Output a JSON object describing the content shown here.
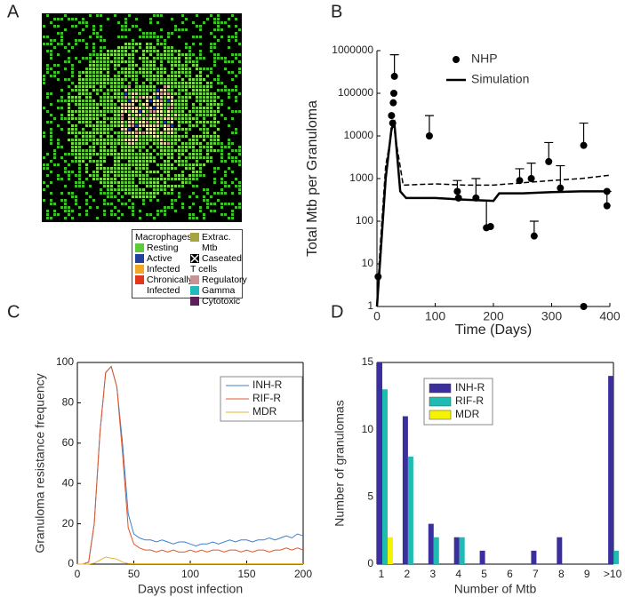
{
  "panel_labels": [
    "A",
    "B",
    "C",
    "D"
  ],
  "panel_a": {
    "legend": {
      "macrophages_title": "Macrophages",
      "macrophages": [
        {
          "label": "Resting",
          "color": "#5fc93c"
        },
        {
          "label": "Active",
          "color": "#23409c"
        },
        {
          "label": "Infected",
          "color": "#f4a722"
        },
        {
          "label": "Chronically Infected",
          "color": "#e2361f"
        }
      ],
      "other": [
        {
          "label": "Extrac. Mtb",
          "color": "#a6a43e"
        },
        {
          "label": "Caseated"
        }
      ],
      "tcells_title": "T cells",
      "tcells": [
        {
          "label": "Regulatory",
          "color": "#c79396"
        },
        {
          "label": "Gamma",
          "color": "#22b9be"
        },
        {
          "label": "Cytotoxic",
          "color": "#5e1e5a"
        }
      ]
    }
  },
  "chart_data": [
    {
      "type": "scatter",
      "y_label": "Total Mtb per Granuloma",
      "x_label": "Time (Days)",
      "log_scale_y": true,
      "xlim": [
        0,
        400
      ],
      "xticks": [
        0,
        100,
        200,
        300,
        400
      ],
      "ylim": [
        1,
        1000000
      ],
      "yticks": [
        1,
        10,
        100,
        1000,
        10000,
        100000,
        1000000
      ],
      "series": [
        {
          "name": "NHP",
          "kind": "points",
          "color": "#000000",
          "x": [
            2,
            25,
            27,
            28,
            29,
            30,
            90,
            138,
            140,
            170,
            188,
            195,
            245,
            265,
            270,
            295,
            315,
            355,
            355,
            395,
            395
          ],
          "values": [
            5,
            30000,
            20000,
            60000,
            100000,
            250000,
            10000,
            500,
            350,
            350,
            70,
            75,
            900,
            1000,
            45,
            2500,
            600,
            1,
            6000,
            230,
            500
          ],
          "error_upper": [
            null,
            null,
            null,
            null,
            null,
            800000,
            30000,
            900,
            null,
            1000,
            300,
            null,
            1700,
            2300,
            100,
            7000,
            2000,
            null,
            20000,
            500,
            null
          ]
        },
        {
          "name": "Simulation",
          "kind": "line",
          "style": "solid",
          "color": "#000000",
          "x": [
            0,
            5,
            15,
            25,
            30,
            40,
            50,
            100,
            150,
            200,
            210,
            250,
            300,
            350,
            400
          ],
          "values": [
            1,
            10,
            1000,
            15000,
            20000,
            500,
            350,
            350,
            320,
            300,
            450,
            450,
            480,
            500,
            500
          ]
        },
        {
          "kind": "line",
          "style": "dashed",
          "color": "#000000",
          "x": [
            0,
            5,
            15,
            28,
            35,
            45,
            100,
            150,
            200,
            250,
            300,
            350,
            400
          ],
          "values": [
            1,
            20,
            2000,
            20000,
            5000,
            700,
            750,
            700,
            700,
            800,
            900,
            1000,
            1200
          ]
        }
      ]
    },
    {
      "type": "line",
      "y_label": "Granuloma resistance frequency",
      "x_label": "Days post infection",
      "xlim": [
        0,
        200
      ],
      "xticks": [
        0,
        50,
        100,
        150,
        200
      ],
      "ylim": [
        0,
        100
      ],
      "yticks": [
        0,
        20,
        40,
        60,
        80,
        100
      ],
      "x": [
        0,
        5,
        10,
        15,
        20,
        25,
        30,
        35,
        40,
        45,
        50,
        55,
        60,
        65,
        70,
        75,
        80,
        85,
        90,
        95,
        100,
        105,
        110,
        115,
        120,
        125,
        130,
        135,
        140,
        145,
        150,
        155,
        160,
        165,
        170,
        175,
        180,
        185,
        190,
        195,
        200
      ],
      "series": [
        {
          "name": "INH-R",
          "color": "#3c80cf",
          "values": [
            0,
            0,
            1,
            20,
            65,
            95,
            98,
            88,
            60,
            25,
            15,
            13,
            12,
            12,
            11,
            12,
            11,
            10,
            11,
            11,
            10,
            9,
            10,
            10,
            11,
            10,
            11,
            12,
            11,
            12,
            12,
            11,
            12,
            12,
            13,
            12,
            13,
            14,
            13,
            15,
            14
          ]
        },
        {
          "name": "RIF-R",
          "color": "#e0582c",
          "values": [
            0,
            0,
            1,
            20,
            65,
            95,
            98,
            88,
            55,
            18,
            10,
            8,
            7,
            7,
            6,
            7,
            6,
            7,
            6,
            6,
            7,
            6,
            7,
            6,
            7,
            7,
            6,
            7,
            7,
            6,
            7,
            6,
            7,
            7,
            6,
            7,
            7,
            8,
            7,
            8,
            7
          ]
        },
        {
          "name": "MDR",
          "color": "#e8b730",
          "values": [
            0,
            0,
            0,
            0.5,
            2,
            3.5,
            3,
            2.5,
            1,
            0.3,
            0.2,
            0.2,
            0.2,
            0.2,
            0.2,
            0.2,
            0.2,
            0.2,
            0.2,
            0.2,
            0.2,
            0.2,
            0.2,
            0.2,
            0.2,
            0.2,
            0.2,
            0.2,
            0.2,
            0.2,
            0.2,
            0.2,
            0.2,
            0.2,
            0.2,
            0.2,
            0.2,
            0.2,
            0.2,
            0.2,
            0.2
          ]
        }
      ]
    },
    {
      "type": "bar",
      "y_label": "Number of granulomas",
      "x_label": "Number of Mtb",
      "categories": [
        "1",
        "2",
        "3",
        "4",
        "5",
        "6",
        "7",
        "8",
        "9",
        ">10"
      ],
      "ylim": [
        0,
        15
      ],
      "yticks": [
        0,
        5,
        10,
        15
      ],
      "series": [
        {
          "name": "INH-R",
          "color": "#3b2f9e",
          "values": [
            15,
            11,
            3,
            2,
            1,
            0,
            1,
            2,
            0,
            14
          ]
        },
        {
          "name": "RIF-R",
          "color": "#1fbcb4",
          "values": [
            13,
            8,
            2,
            2,
            0,
            0,
            0,
            0,
            0,
            1
          ]
        },
        {
          "name": "MDR",
          "color": "#f4f400",
          "values": [
            2,
            0,
            0,
            0,
            0,
            0,
            0,
            0,
            0,
            0
          ]
        }
      ]
    }
  ]
}
